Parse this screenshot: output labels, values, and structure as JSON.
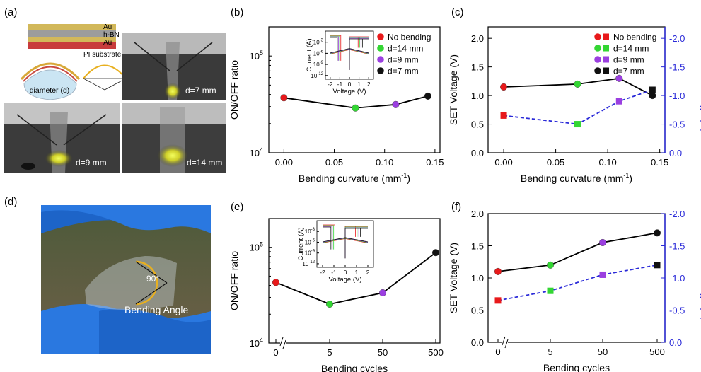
{
  "panels": {
    "a": {
      "label": "(a)"
    },
    "b": {
      "label": "(b)"
    },
    "c": {
      "label": "(c)"
    },
    "d": {
      "label": "(d)"
    },
    "e": {
      "label": "(e)"
    },
    "f": {
      "label": "(f)"
    }
  },
  "schematic": {
    "layers": [
      "Au",
      "h-BN",
      "Au"
    ],
    "substrate": "PI substrate",
    "diameter_label": "diameter (d)"
  },
  "photos": {
    "top_right": "d=7 mm",
    "bottom_left": "d=9 mm",
    "bottom_right": "d=14 mm",
    "bending_angle": "Bending Angle",
    "angle_value": "90°"
  },
  "legend": [
    "No bending",
    "d=14 mm",
    "d=9 mm",
    "d=7 mm"
  ],
  "colors": {
    "red": "#e8191b",
    "green": "#33d633",
    "purple": "#9b3fe0",
    "black": "#111111",
    "blue": "#2a2ad8",
    "gold": "#e8b020"
  },
  "chart_data": [
    {
      "id": "b",
      "type": "line",
      "xlabel": "Bending curvature (mm",
      "xlabel_sup": "-1",
      "xlabel_end": ")",
      "ylabel": "ON/OFF ratio",
      "xlim": [
        -0.015,
        0.155
      ],
      "ylim": [
        10000,
        200000
      ],
      "log_y": true,
      "x_ticks": [
        "0.00",
        "0.05",
        "0.10",
        "0.15"
      ],
      "y_ticks": [
        "10",
        "10"
      ],
      "y_tick_exp": [
        "4",
        "5"
      ],
      "x": [
        0.0,
        0.071,
        0.111,
        0.143
      ],
      "values": [
        37000,
        29000,
        31500,
        38500
      ],
      "point_colors": [
        "red",
        "green",
        "purple",
        "black"
      ]
    },
    {
      "id": "c",
      "type": "line",
      "xlabel": "Bending curvature (mm",
      "xlabel_sup": "-1",
      "xlabel_end": ")",
      "ylabel": "SET Voltage (V)",
      "ylabel_right": "RESET Voltage (V)",
      "xlim": [
        -0.015,
        0.155
      ],
      "ylim": [
        0.0,
        2.2
      ],
      "ylim_right": [
        0.0,
        -2.2
      ],
      "x_ticks": [
        "0.00",
        "0.05",
        "0.10",
        "0.15"
      ],
      "y_ticks": [
        "0.0",
        "0.5",
        "1.0",
        "1.5",
        "2.0"
      ],
      "y_ticks_right": [
        "0.0",
        "-0.5",
        "-1.0",
        "-1.5",
        "-2.0"
      ],
      "series": [
        {
          "x": [
            0.0,
            0.071,
            0.111,
            0.143
          ],
          "values": [
            1.15,
            1.2,
            1.3,
            1.0
          ],
          "marker": "circle"
        },
        {
          "x": [
            0.0,
            0.071,
            0.111,
            0.143
          ],
          "values": [
            -0.65,
            -0.5,
            -0.9,
            -1.1
          ],
          "marker": "square"
        }
      ],
      "point_colors": [
        "red",
        "green",
        "purple",
        "black"
      ]
    },
    {
      "id": "e",
      "type": "line",
      "xlabel": "Bending cycles",
      "ylabel": "ON/OFF ratio",
      "ylim": [
        10000,
        200000
      ],
      "log_y": true,
      "x_ticks": [
        "0",
        "5",
        "50",
        "500"
      ],
      "y_ticks": [
        "10",
        "10"
      ],
      "y_tick_exp": [
        "4",
        "5"
      ],
      "x": [
        0,
        5,
        50,
        500
      ],
      "values": [
        43000,
        25500,
        33500,
        88000
      ],
      "point_colors": [
        "red",
        "green",
        "purple",
        "black"
      ]
    },
    {
      "id": "f",
      "type": "line",
      "xlabel": "Bending cycles",
      "ylabel": "SET Voltage (V)",
      "ylabel_right": "RESET Voltage (V)",
      "ylim": [
        0.0,
        2.0
      ],
      "ylim_right": [
        0.0,
        -2.0
      ],
      "x_ticks": [
        "0",
        "5",
        "50",
        "500"
      ],
      "y_ticks": [
        "0.0",
        "0.5",
        "1.0",
        "1.5",
        "2.0"
      ],
      "y_ticks_right": [
        "0.0",
        "-0.5",
        "-1.0",
        "-1.5",
        "-2.0"
      ],
      "series": [
        {
          "x": [
            0,
            5,
            50,
            500
          ],
          "values": [
            1.1,
            1.2,
            1.55,
            1.7
          ],
          "marker": "circle"
        },
        {
          "x": [
            0,
            5,
            50,
            500
          ],
          "values": [
            -0.65,
            -0.8,
            -1.05,
            -1.2
          ],
          "marker": "square"
        }
      ],
      "point_colors": [
        "red",
        "green",
        "purple",
        "black"
      ]
    }
  ],
  "insets": {
    "xlabel": "Voltage (V)",
    "ylabel": "Current (A)",
    "x_ticks": [
      "-2",
      "-1",
      "0",
      "1",
      "2"
    ],
    "y_tick_base": "10",
    "y_tick_exp": [
      "-3",
      "-6",
      "-9",
      "-12"
    ]
  }
}
